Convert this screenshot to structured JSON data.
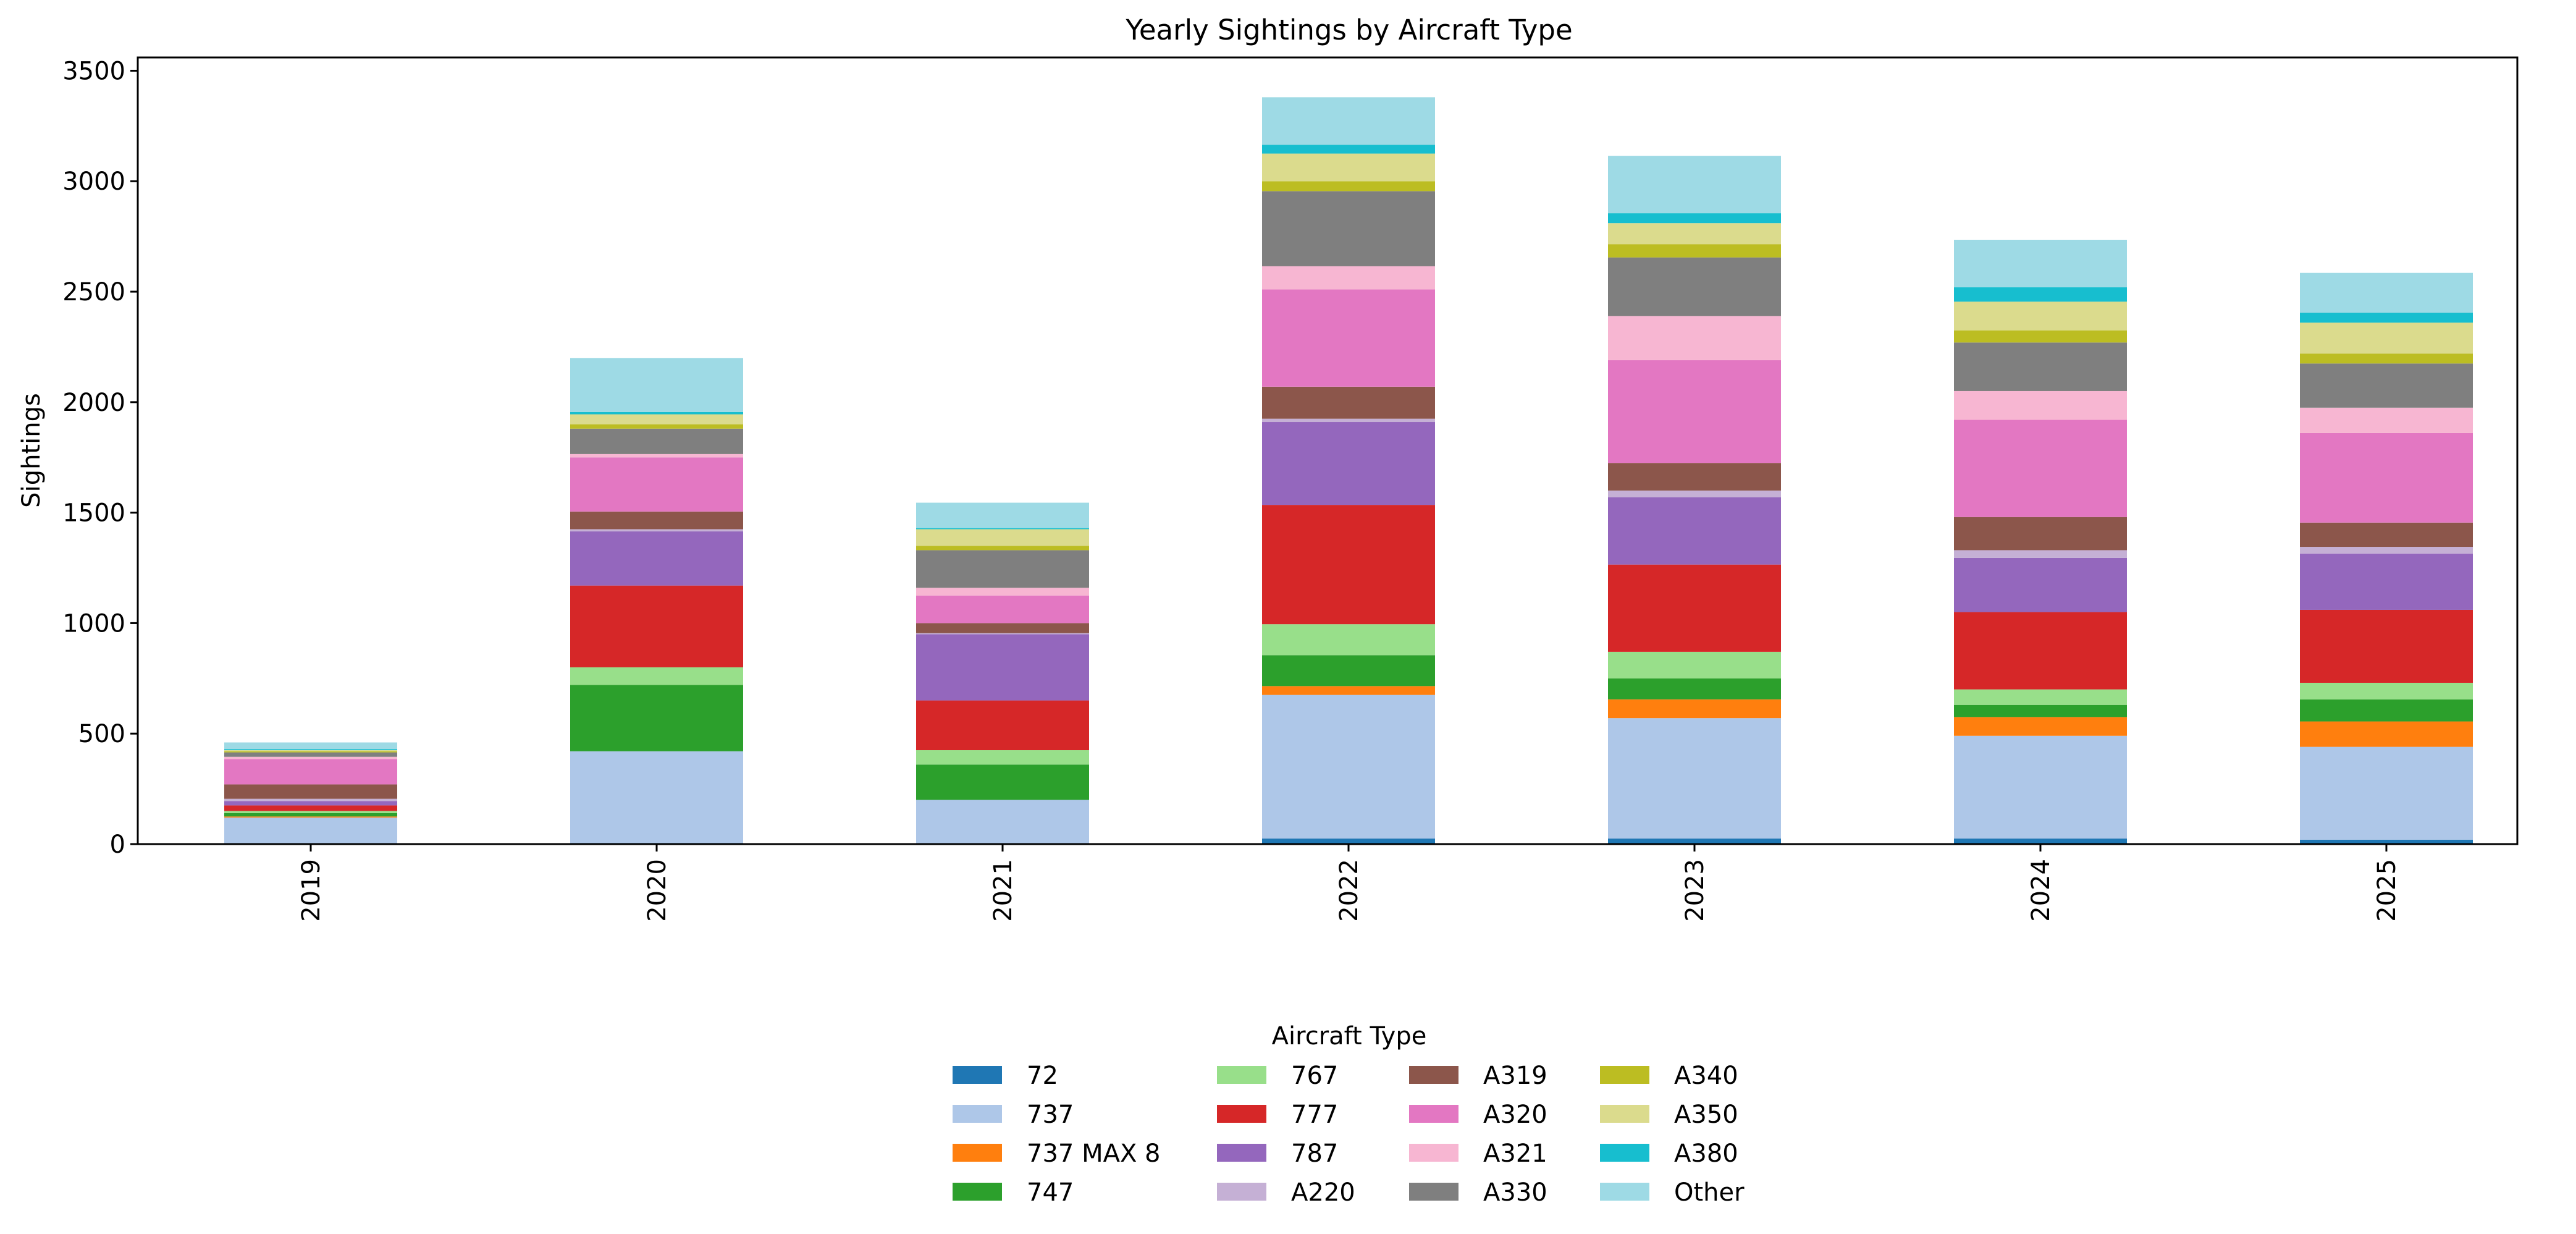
{
  "chart_data": {
    "type": "bar",
    "stacked": true,
    "title": "Yearly Sightings by Aircraft Type",
    "xlabel": "",
    "ylabel": "Sightings",
    "categories": [
      "2019",
      "2020",
      "2021",
      "2022",
      "2023",
      "2024",
      "2025"
    ],
    "ylim": [
      0,
      3560
    ],
    "yticks": [
      0,
      500,
      1000,
      1500,
      2000,
      2500,
      3000,
      3500
    ],
    "grid": false,
    "legend": {
      "title": "Aircraft Type",
      "placement": "bottom-center",
      "ncol": 4
    },
    "series": [
      {
        "name": "72",
        "color": "#1f77b4",
        "values": [
          4,
          5,
          4,
          25,
          25,
          25,
          20
        ]
      },
      {
        "name": "737",
        "color": "#aec7e8",
        "values": [
          116,
          415,
          196,
          650,
          545,
          465,
          420
        ]
      },
      {
        "name": "737 MAX 8",
        "color": "#ff7f0e",
        "values": [
          5,
          0,
          0,
          40,
          85,
          85,
          115
        ]
      },
      {
        "name": "747",
        "color": "#2ca02c",
        "values": [
          15,
          300,
          160,
          140,
          95,
          55,
          100
        ]
      },
      {
        "name": "767",
        "color": "#98df8a",
        "values": [
          10,
          80,
          65,
          140,
          120,
          70,
          75
        ]
      },
      {
        "name": "777",
        "color": "#d62728",
        "values": [
          25,
          370,
          225,
          540,
          395,
          350,
          330
        ]
      },
      {
        "name": "787",
        "color": "#9467bd",
        "values": [
          20,
          245,
          300,
          375,
          305,
          245,
          255
        ]
      },
      {
        "name": "A220",
        "color": "#c5b0d5",
        "values": [
          10,
          10,
          5,
          15,
          30,
          35,
          30
        ]
      },
      {
        "name": "A319",
        "color": "#8c564b",
        "values": [
          65,
          80,
          45,
          145,
          125,
          150,
          110
        ]
      },
      {
        "name": "A320",
        "color": "#e377c2",
        "values": [
          115,
          245,
          125,
          440,
          465,
          440,
          405
        ]
      },
      {
        "name": "A321",
        "color": "#f7b6d2",
        "values": [
          10,
          15,
          35,
          105,
          200,
          130,
          115
        ]
      },
      {
        "name": "A330",
        "color": "#7f7f7f",
        "values": [
          20,
          115,
          170,
          340,
          265,
          220,
          200
        ]
      },
      {
        "name": "A340",
        "color": "#bcbd22",
        "values": [
          5,
          20,
          20,
          45,
          60,
          55,
          45
        ]
      },
      {
        "name": "A350",
        "color": "#dbdb8d",
        "values": [
          5,
          45,
          75,
          125,
          95,
          130,
          140
        ]
      },
      {
        "name": "A380",
        "color": "#17becf",
        "values": [
          5,
          10,
          5,
          40,
          45,
          65,
          45
        ]
      },
      {
        "name": "Other",
        "color": "#9edae5",
        "values": [
          30,
          245,
          115,
          215,
          260,
          215,
          180
        ]
      }
    ]
  }
}
